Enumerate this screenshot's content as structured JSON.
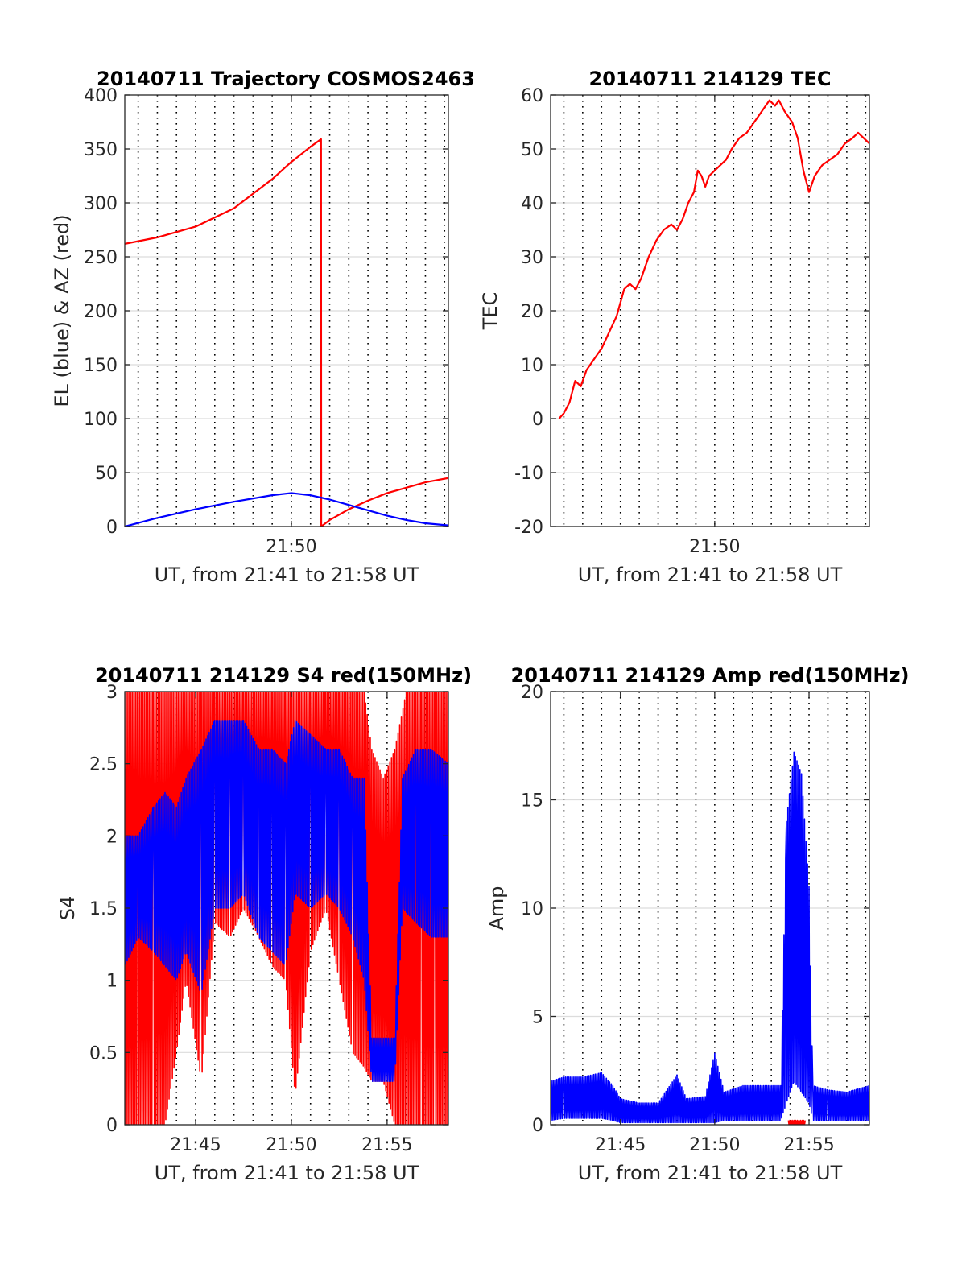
{
  "colors": {
    "red": "#ff0000",
    "blue": "#0000ff",
    "axis": "#262626",
    "grid": "#dcdcdc"
  },
  "chart_data": [
    {
      "id": "trajectory",
      "type": "line",
      "title": "20140711 Trajectory COSMOS2463",
      "xlabel": "UT, from 21:41 to 21:58 UT",
      "ylabel": "EL (blue) & AZ (red)",
      "x_unit": "minutes after 21:00 UT",
      "xlim": [
        41.3,
        58.2
      ],
      "ylim": [
        0,
        400
      ],
      "yticks": [
        0,
        50,
        100,
        150,
        200,
        250,
        300,
        350,
        400
      ],
      "xticks": [
        {
          "value": 50,
          "label": "21:50"
        }
      ],
      "minute_gridlines": [
        42,
        43,
        44,
        45,
        46,
        47,
        48,
        49,
        50,
        51,
        52,
        53,
        54,
        55,
        56,
        57,
        58
      ],
      "series": [
        {
          "color": "#ff0000",
          "mode": "line",
          "points": [
            [
              41.3,
              262
            ],
            [
              43,
              268
            ],
            [
              45,
              278
            ],
            [
              47,
              295
            ],
            [
              49,
              322
            ],
            [
              50,
              338
            ],
            [
              51,
              352
            ],
            [
              51.55,
              359
            ],
            [
              51.56,
              0
            ],
            [
              52,
              6
            ],
            [
              53,
              16
            ],
            [
              54,
              24
            ],
            [
              55,
              31
            ],
            [
              56,
              36
            ],
            [
              57,
              41
            ],
            [
              58.2,
              45
            ]
          ]
        },
        {
          "color": "#0000ff",
          "mode": "line",
          "points": [
            [
              41.3,
              0
            ],
            [
              43,
              8
            ],
            [
              45,
              16
            ],
            [
              47,
              23
            ],
            [
              49,
              29
            ],
            [
              50,
              31
            ],
            [
              51,
              29
            ],
            [
              52,
              25
            ],
            [
              53,
              20
            ],
            [
              54,
              15
            ],
            [
              55,
              10
            ],
            [
              56,
              6
            ],
            [
              57,
              3
            ],
            [
              58.2,
              1
            ]
          ]
        }
      ]
    },
    {
      "id": "tec",
      "type": "line",
      "title": "20140711 214129 TEC",
      "xlabel": "UT, from 21:41 to 21:58 UT",
      "ylabel": "TEC",
      "x_unit": "minutes after 21:00 UT",
      "xlim": [
        41.3,
        58.2
      ],
      "ylim": [
        -20,
        60
      ],
      "yticks": [
        -20,
        -10,
        0,
        10,
        20,
        30,
        40,
        50,
        60
      ],
      "xticks": [
        {
          "value": 50,
          "label": "21:50"
        }
      ],
      "minute_gridlines": [
        42,
        43,
        44,
        45,
        46,
        47,
        48,
        49,
        50,
        51,
        52,
        53,
        54,
        55,
        56,
        57,
        58
      ],
      "series": [
        {
          "color": "#ff0000",
          "mode": "line",
          "points": [
            [
              41.75,
              0
            ],
            [
              42.0,
              1
            ],
            [
              42.3,
              3
            ],
            [
              42.6,
              7
            ],
            [
              42.9,
              6
            ],
            [
              43.2,
              9
            ],
            [
              43.6,
              11
            ],
            [
              44.0,
              13
            ],
            [
              44.4,
              16
            ],
            [
              44.8,
              19
            ],
            [
              45.2,
              24
            ],
            [
              45.5,
              25
            ],
            [
              45.8,
              24
            ],
            [
              46.1,
              26
            ],
            [
              46.5,
              30
            ],
            [
              46.9,
              33
            ],
            [
              47.3,
              35
            ],
            [
              47.7,
              36
            ],
            [
              48.0,
              35
            ],
            [
              48.3,
              37
            ],
            [
              48.6,
              40
            ],
            [
              48.9,
              42
            ],
            [
              49.1,
              46
            ],
            [
              49.3,
              45
            ],
            [
              49.5,
              43
            ],
            [
              49.7,
              45
            ],
            [
              50.0,
              46
            ],
            [
              50.3,
              47
            ],
            [
              50.6,
              48
            ],
            [
              50.9,
              50
            ],
            [
              51.3,
              52
            ],
            [
              51.7,
              53
            ],
            [
              52.1,
              55
            ],
            [
              52.5,
              57
            ],
            [
              52.9,
              59
            ],
            [
              53.2,
              58
            ],
            [
              53.4,
              59
            ],
            [
              53.7,
              57
            ],
            [
              54.1,
              55
            ],
            [
              54.4,
              52
            ],
            [
              54.7,
              46
            ],
            [
              55.0,
              42
            ],
            [
              55.3,
              45
            ],
            [
              55.7,
              47
            ],
            [
              56.1,
              48
            ],
            [
              56.5,
              49
            ],
            [
              56.9,
              51
            ],
            [
              57.3,
              52
            ],
            [
              57.6,
              53
            ],
            [
              57.9,
              52
            ],
            [
              58.2,
              51
            ]
          ]
        }
      ]
    },
    {
      "id": "s4",
      "type": "line",
      "title": "20140711 214129 S4 red(150MHz)",
      "xlabel": "UT, from 21:41 to 21:58 UT",
      "ylabel": "S4",
      "x_unit": "minutes after 21:00 UT",
      "xlim": [
        41.3,
        58.2
      ],
      "ylim": [
        0,
        3
      ],
      "yticks": [
        0,
        0.5,
        1,
        1.5,
        2,
        2.5,
        3
      ],
      "xticks": [
        {
          "value": 45,
          "label": "21:45"
        },
        {
          "value": 50,
          "label": "21:50"
        },
        {
          "value": 55,
          "label": "21:55"
        }
      ],
      "minute_gridlines": [
        42,
        43,
        44,
        45,
        46,
        47,
        48,
        49,
        50,
        51,
        52,
        53,
        54,
        55,
        56,
        57,
        58
      ],
      "series": [
        {
          "color": "#ff0000",
          "mode": "band",
          "bands": [
            [
              41.3,
              0,
              3
            ],
            [
              42.0,
              0,
              3
            ],
            [
              42.8,
              0,
              3
            ],
            [
              43.4,
              0,
              3
            ],
            [
              44.0,
              0.5,
              3
            ],
            [
              44.5,
              1.0,
              3
            ],
            [
              45.3,
              0.3,
              3
            ],
            [
              46.0,
              1.4,
              3
            ],
            [
              46.8,
              1.3,
              3
            ],
            [
              47.5,
              1.5,
              3
            ],
            [
              48.3,
              1.3,
              3
            ],
            [
              49.0,
              1.1,
              3
            ],
            [
              49.7,
              1.0,
              3
            ],
            [
              50.2,
              0.2,
              3
            ],
            [
              51.0,
              1.2,
              3
            ],
            [
              51.8,
              1.5,
              3
            ],
            [
              52.5,
              1.0,
              3
            ],
            [
              53.2,
              0.5,
              3
            ],
            [
              53.8,
              0.4,
              3
            ],
            [
              54.2,
              0.3,
              2.6
            ],
            [
              54.8,
              0.3,
              2.4
            ],
            [
              55.4,
              0.0,
              2.6
            ],
            [
              56.0,
              0.0,
              3
            ],
            [
              56.8,
              0.0,
              3
            ],
            [
              57.5,
              0.0,
              3
            ],
            [
              58.2,
              0.0,
              3
            ]
          ]
        },
        {
          "color": "#0000ff",
          "mode": "band",
          "bands": [
            [
              41.3,
              1.1,
              2.0
            ],
            [
              42.0,
              1.3,
              2.0
            ],
            [
              42.8,
              1.2,
              2.2
            ],
            [
              43.4,
              1.1,
              2.3
            ],
            [
              44.0,
              1.0,
              2.2
            ],
            [
              44.5,
              1.2,
              2.4
            ],
            [
              45.3,
              0.9,
              2.6
            ],
            [
              46.0,
              1.5,
              2.8
            ],
            [
              46.8,
              1.5,
              2.8
            ],
            [
              47.5,
              1.6,
              2.8
            ],
            [
              48.3,
              1.3,
              2.6
            ],
            [
              49.0,
              1.2,
              2.6
            ],
            [
              49.7,
              1.1,
              2.5
            ],
            [
              50.2,
              1.6,
              2.8
            ],
            [
              51.0,
              1.5,
              2.7
            ],
            [
              51.8,
              1.6,
              2.6
            ],
            [
              52.5,
              1.5,
              2.6
            ],
            [
              53.2,
              1.3,
              2.4
            ],
            [
              53.8,
              1.0,
              2.4
            ],
            [
              54.2,
              0.3,
              0.6
            ],
            [
              54.8,
              0.3,
              0.6
            ],
            [
              55.4,
              0.3,
              0.6
            ],
            [
              55.8,
              1.5,
              2.4
            ],
            [
              56.5,
              1.4,
              2.6
            ],
            [
              57.3,
              1.3,
              2.6
            ],
            [
              58.2,
              1.3,
              2.5
            ]
          ]
        }
      ]
    },
    {
      "id": "amp",
      "type": "line",
      "title": "20140711 214129 Amp red(150MHz)",
      "xlabel": "UT, from 21:41 to 21:58 UT",
      "ylabel": "Amp",
      "x_unit": "minutes after 21:00 UT",
      "xlim": [
        41.3,
        58.2
      ],
      "ylim": [
        0,
        20
      ],
      "yticks": [
        0,
        5,
        10,
        15,
        20
      ],
      "xticks": [
        {
          "value": 45,
          "label": "21:45"
        },
        {
          "value": 50,
          "label": "21:50"
        },
        {
          "value": 55,
          "label": "21:55"
        }
      ],
      "minute_gridlines": [
        42,
        43,
        44,
        45,
        46,
        47,
        48,
        49,
        50,
        51,
        52,
        53,
        54,
        55,
        56,
        57,
        58
      ],
      "series": [
        {
          "color": "#ff0000",
          "mode": "band",
          "bands": [
            [
              53.9,
              0,
              0.2
            ],
            [
              54.3,
              0,
              0.2
            ],
            [
              54.8,
              0,
              0.2
            ]
          ]
        },
        {
          "color": "#0000ff",
          "mode": "band",
          "bands": [
            [
              41.3,
              0.2,
              2.0
            ],
            [
              42.0,
              0.3,
              2.2
            ],
            [
              43.0,
              0.3,
              2.2
            ],
            [
              44.0,
              0.3,
              2.4
            ],
            [
              44.6,
              0.2,
              1.8
            ],
            [
              45.0,
              0.1,
              1.2
            ],
            [
              46.0,
              0.1,
              1.0
            ],
            [
              47.0,
              0.1,
              1.0
            ],
            [
              48.0,
              0.1,
              2.3
            ],
            [
              48.5,
              0.1,
              1.2
            ],
            [
              49.5,
              0.1,
              1.3
            ],
            [
              50.0,
              0.1,
              3.3
            ],
            [
              50.5,
              0.2,
              1.5
            ],
            [
              51.5,
              0.2,
              1.8
            ],
            [
              52.5,
              0.2,
              1.8
            ],
            [
              53.5,
              0.2,
              1.8
            ],
            [
              53.8,
              1.0,
              14.0
            ],
            [
              54.2,
              2.0,
              17.2
            ],
            [
              54.6,
              1.5,
              16.2
            ],
            [
              55.0,
              1.0,
              11.0
            ],
            [
              55.2,
              0.2,
              1.8
            ],
            [
              56.0,
              0.2,
              1.6
            ],
            [
              57.0,
              0.2,
              1.5
            ],
            [
              58.2,
              0.2,
              1.8
            ]
          ]
        }
      ]
    }
  ]
}
